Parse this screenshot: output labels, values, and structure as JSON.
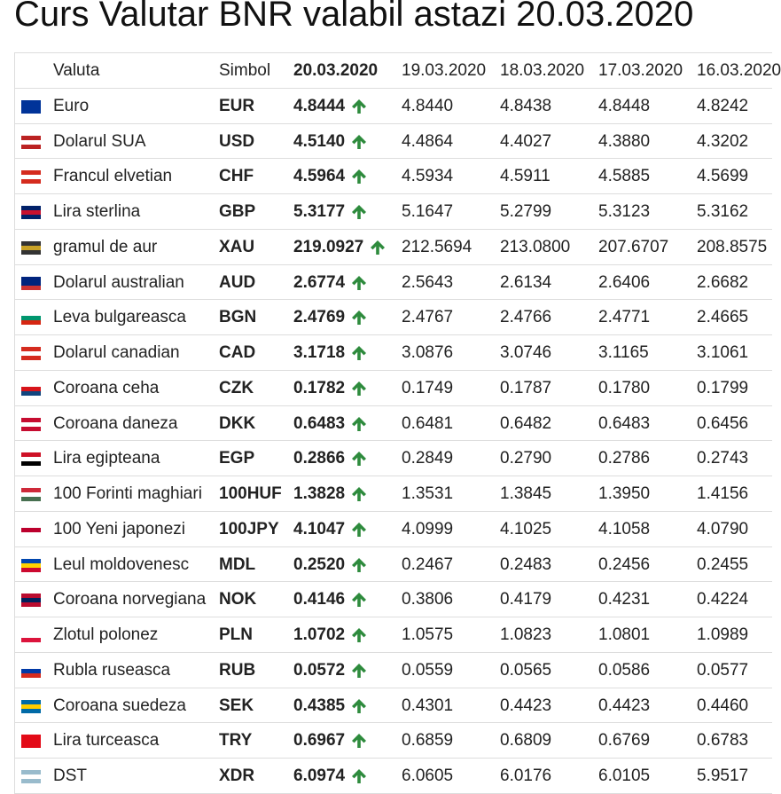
{
  "header": {
    "title": "Curs Valutar BNR valabil astazi 20.03.2020"
  },
  "table": {
    "columns": [
      "Valuta",
      "Simbol",
      "20.03.2020",
      "19.03.2020",
      "18.03.2020",
      "17.03.2020",
      "16.03.2020"
    ],
    "rows": [
      [
        "Euro",
        "EUR",
        "4.8444",
        "4.8440",
        "4.8438",
        "4.8448",
        "4.8242"
      ],
      [
        "Dolarul SUA",
        "USD",
        "4.5140",
        "4.4864",
        "4.4027",
        "4.3880",
        "4.3202"
      ],
      [
        "Francul elvetian",
        "CHF",
        "4.5964",
        "4.5934",
        "4.5911",
        "4.5885",
        "4.5699"
      ],
      [
        "Lira sterlina",
        "GBP",
        "5.3177",
        "5.1647",
        "5.2799",
        "5.3123",
        "5.3162"
      ],
      [
        "gramul de aur",
        "XAU",
        "219.0927",
        "212.5694",
        "213.0800",
        "207.6707",
        "208.8575"
      ],
      [
        "Dolarul australian",
        "AUD",
        "2.6774",
        "2.5643",
        "2.6134",
        "2.6406",
        "2.6682"
      ],
      [
        "Leva bulgareasca",
        "BGN",
        "2.4769",
        "2.4767",
        "2.4766",
        "2.4771",
        "2.4665"
      ],
      [
        "Dolarul canadian",
        "CAD",
        "3.1718",
        "3.0876",
        "3.0746",
        "3.1165",
        "3.1061"
      ],
      [
        "Coroana ceha",
        "CZK",
        "0.1782",
        "0.1749",
        "0.1787",
        "0.1780",
        "0.1799"
      ],
      [
        "Coroana daneza",
        "DKK",
        "0.6483",
        "0.6481",
        "0.6482",
        "0.6483",
        "0.6456"
      ],
      [
        "Lira egipteana",
        "EGP",
        "0.2866",
        "0.2849",
        "0.2790",
        "0.2786",
        "0.2743"
      ],
      [
        "100 Forinti maghiari",
        "100HUF",
        "1.3828",
        "1.3531",
        "1.3845",
        "1.3950",
        "1.4156"
      ],
      [
        "100 Yeni japonezi",
        "100JPY",
        "4.1047",
        "4.0999",
        "4.1025",
        "4.1058",
        "4.0790"
      ],
      [
        "Leul moldovenesc",
        "MDL",
        "0.2520",
        "0.2467",
        "0.2483",
        "0.2456",
        "0.2455"
      ],
      [
        "Coroana norvegiana",
        "NOK",
        "0.4146",
        "0.3806",
        "0.4179",
        "0.4231",
        "0.4224"
      ],
      [
        "Zlotul polonez",
        "PLN",
        "1.0702",
        "1.0575",
        "1.0823",
        "1.0801",
        "1.0989"
      ],
      [
        "Rubla ruseasca",
        "RUB",
        "0.0572",
        "0.0559",
        "0.0565",
        "0.0586",
        "0.0577"
      ],
      [
        "Coroana suedeza",
        "SEK",
        "0.4385",
        "0.4301",
        "0.4423",
        "0.4423",
        "0.4460"
      ],
      [
        "Lira turceasca",
        "TRY",
        "0.6967",
        "0.6859",
        "0.6809",
        "0.6769",
        "0.6783"
      ],
      [
        "DST",
        "XDR",
        "6.0974",
        "6.0605",
        "6.0176",
        "6.0105",
        "5.9517"
      ]
    ]
  }
}
